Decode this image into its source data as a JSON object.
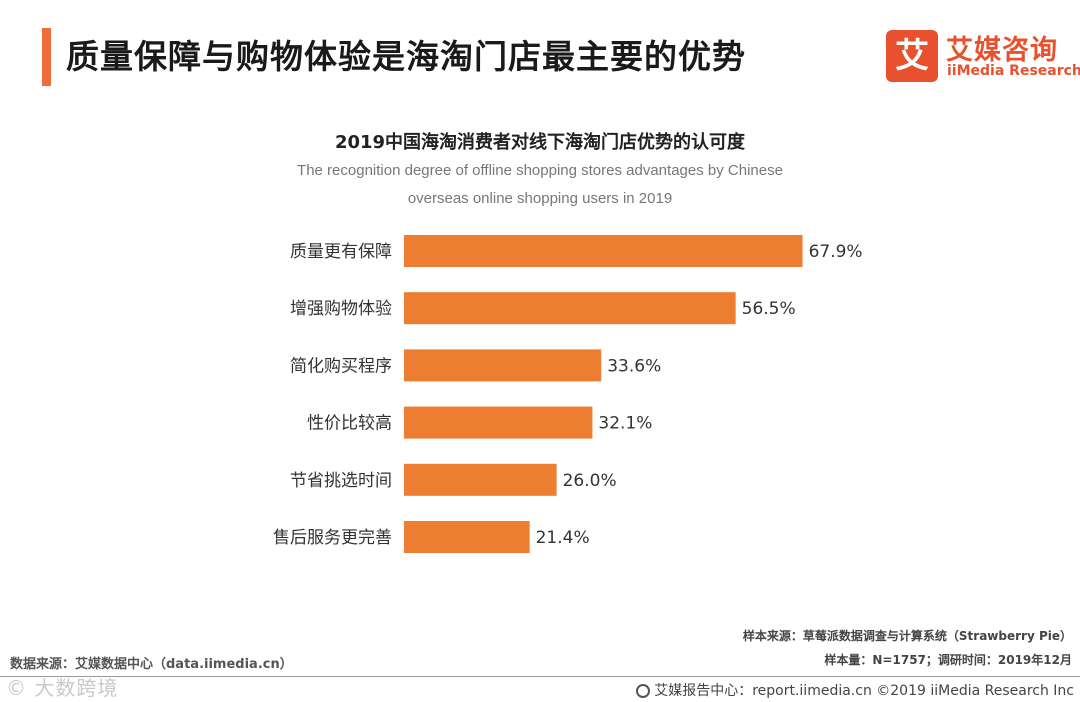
{
  "header": {
    "title": "质量保障与购物体验是海淘门店最主要的优势",
    "accent_color": "#f26b3a"
  },
  "logo": {
    "mark": "艾",
    "cn": "艾媒咨询",
    "en": "iiMedia Research",
    "color": "#e8512e"
  },
  "chart_data": {
    "type": "bar",
    "orientation": "horizontal",
    "title": "2019中国海淘消费者对线下海淘门店优势的认可度",
    "subtitle_line1": "The recognition degree of offline shopping stores advantages by Chinese",
    "subtitle_line2": "overseas online shopping users in 2019",
    "categories": [
      "质量更有保障",
      "增强购物体验",
      "简化购买程序",
      "性价比较高",
      "节省挑选时间",
      "售后服务更完善"
    ],
    "values": [
      67.9,
      56.5,
      33.6,
      32.1,
      26.0,
      21.4
    ],
    "value_labels": [
      "67.9%",
      "56.5%",
      "33.6%",
      "32.1%",
      "26.0%",
      "21.4%"
    ],
    "xlim": [
      0,
      100
    ],
    "bar_color": "#ed7d31",
    "grid": false
  },
  "footer": {
    "source_left": "数据来源：艾媒数据中心（data.iimedia.cn）",
    "sample_source": "样本来源：草莓派数据调查与计算系统（Strawberry Pie）",
    "sample_size": "样本量：N=1757；调研时间：2019年12月",
    "report_center": "艾媒报告中心：report.iimedia.cn  ©2019  iiMedia Research  Inc",
    "watermark": "© 大数跨境"
  }
}
